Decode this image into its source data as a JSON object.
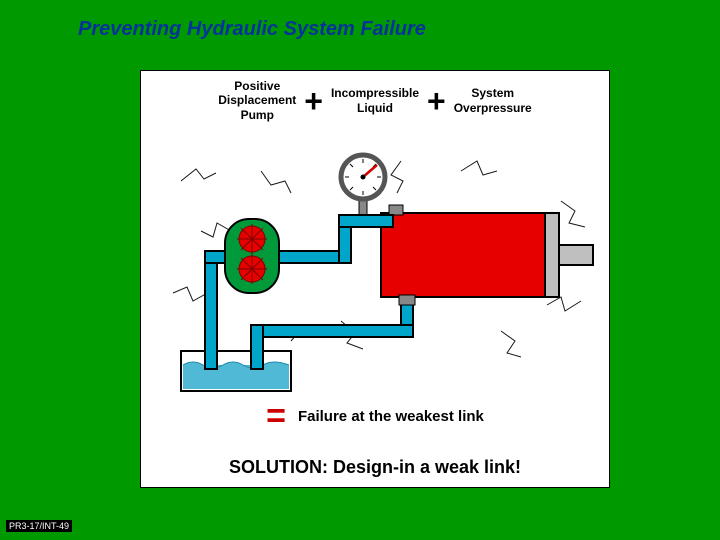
{
  "background_color": "#009a00",
  "title_color": "#003399",
  "title": "Preventing Hydraulic System Failure",
  "equation": {
    "term1": "Positive\nDisplacement\nPump",
    "term2": "Incompressible\nLiquid",
    "term3": "System\nOverpressure",
    "plus_color": "#000000",
    "equals_color": "#cc0000",
    "result": "Failure at the weakest link"
  },
  "solution_text": "SOLUTION: Design-in a weak link!",
  "footer": "PR3-17/INT-49",
  "diagram": {
    "type": "infographic",
    "cylinder_color": "#e60000",
    "cylinder_rod_color": "#bfbfbf",
    "pump_body_color": "#009a3a",
    "gear_color": "#e60000",
    "pipe_color": "#00a6c9",
    "pipe_outline": "#000000",
    "reservoir_liquid": "#4fb9d6",
    "reservoir_outline": "#000000",
    "gauge_face": "#ffffff",
    "gauge_ring": "#555555",
    "gauge_needle": "#d40000",
    "crack_color": "#000000",
    "crack_width": 1
  }
}
